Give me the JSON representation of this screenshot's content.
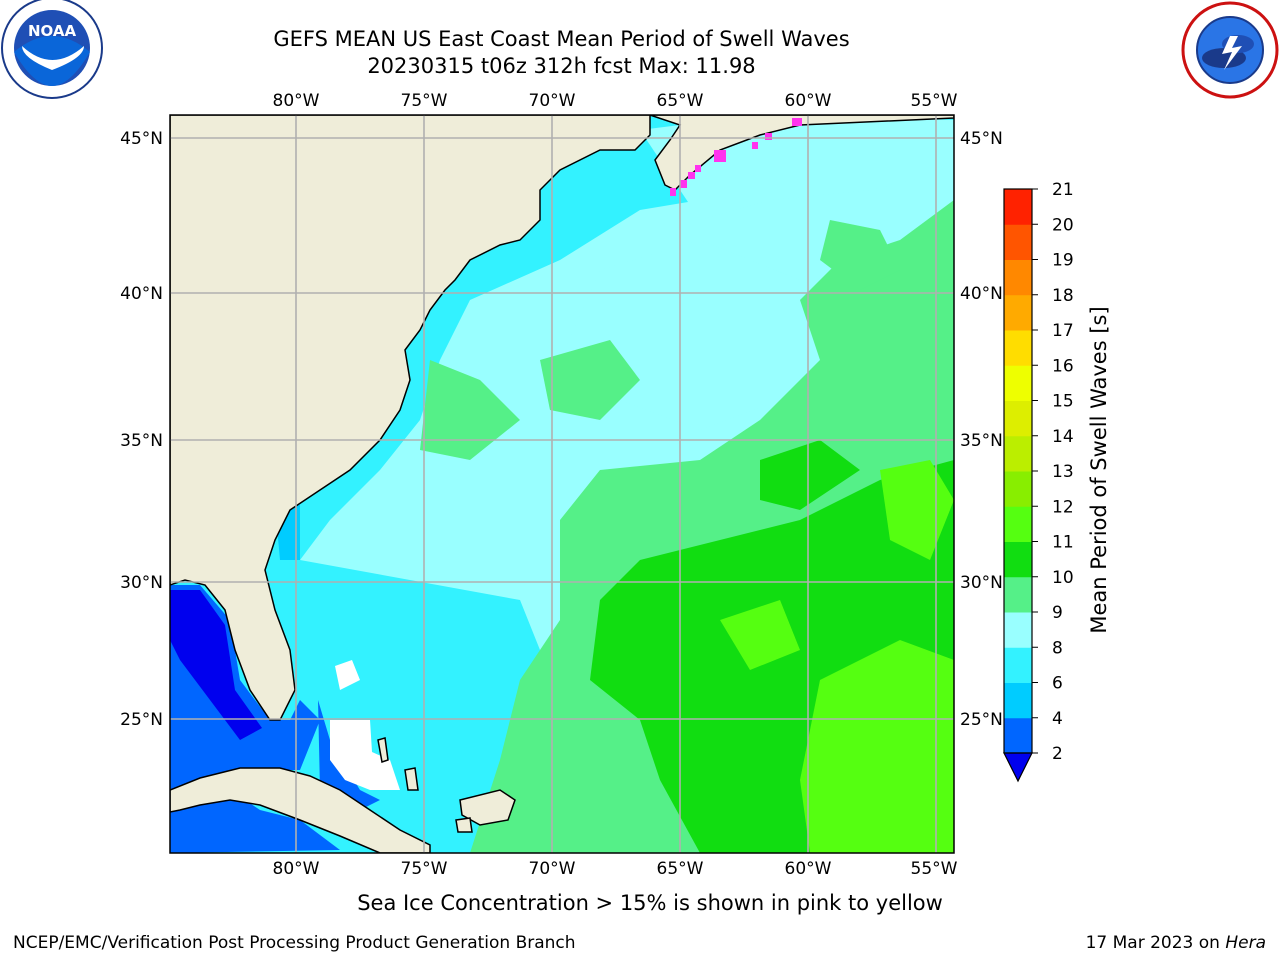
{
  "header": {
    "title_line1": "GEFS MEAN US East Coast Mean Period of Swell Waves",
    "title_line2": "20230315 t06z 312h fcst   Max: 11.98"
  },
  "logos": {
    "left": {
      "icon": "noaa-logo-icon",
      "text": "NOAA",
      "ring_text": "NATIONAL OCEANIC AND ATMOSPHERIC ADMINISTRATION · U.S. DEPARTMENT OF COMMERCE"
    },
    "right": {
      "icon": "nws-logo-icon",
      "ring_text": "NATIONAL WEATHER SERVICE"
    }
  },
  "map": {
    "lon_labels": [
      "80°W",
      "75°W",
      "70°W",
      "65°W",
      "60°W",
      "55°W"
    ],
    "lat_labels_left": [
      "45°N",
      "40°N",
      "35°N",
      "30°N",
      "25°N"
    ],
    "lat_labels_right": [
      "45°N",
      "40°N",
      "35°N",
      "30°N",
      "25°N"
    ],
    "lon_range": [
      -85,
      -54.3
    ],
    "lat_range": [
      20.1,
      45.8
    ],
    "colors": {
      "land": "#efedd9",
      "coast": "#000000",
      "grid": "#b0b0b0",
      "lake_missing": "#ffffff",
      "sea_ice": "#ff33ee"
    }
  },
  "colorbar": {
    "label": "Mean Period of Swell Waves [s]",
    "ticks": [
      "2",
      "4",
      "6",
      "8",
      "9",
      "10",
      "11",
      "12",
      "13",
      "14",
      "15",
      "16",
      "17",
      "18",
      "19",
      "20",
      "21"
    ],
    "colors": [
      "#0066ff",
      "#00ccff",
      "#33f2ff",
      "#99ffff",
      "#55f088",
      "#11dd11",
      "#55ff11",
      "#88ee00",
      "#bbee00",
      "#ddee00",
      "#eeff00",
      "#ffdd00",
      "#ffaa00",
      "#ff8800",
      "#ff5500",
      "#ff2200",
      "#ff0000"
    ],
    "under_color": "#0000ee"
  },
  "note": "Sea Ice Concentration > 15% is shown in pink to yellow",
  "footer": {
    "left": "NCEP/EMC/Verification Post Processing Product Generation Branch",
    "date": "17 Mar 2023 on ",
    "host": "Hera"
  }
}
